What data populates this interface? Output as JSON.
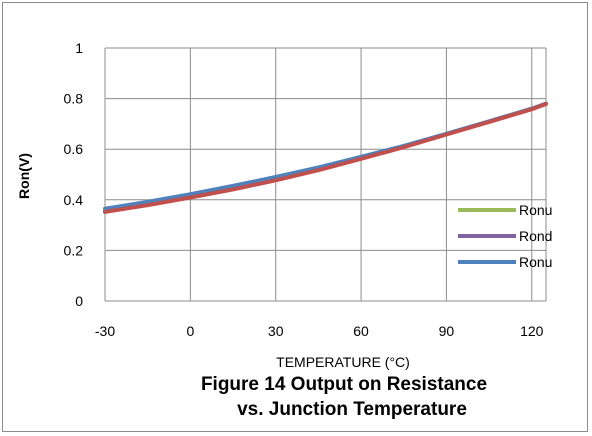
{
  "chart_data": {
    "type": "line",
    "xlabel": "TEMPERATURE (°C)",
    "ylabel": "Ron(V)",
    "title_lines": [
      "Figure 14  Output on Resistance",
      "vs. Junction Temperature"
    ],
    "xlim": [
      -30,
      125
    ],
    "ylim": [
      0,
      1
    ],
    "x_ticks": [
      -30,
      0,
      30,
      60,
      90,
      120
    ],
    "y_ticks": [
      0,
      0.2,
      0.4,
      0.6,
      0.8,
      1
    ],
    "y_tick_labels": [
      "0",
      "0.2",
      "0.4",
      "0.6",
      "0.8",
      "1"
    ],
    "grid": true,
    "legend_position": "right",
    "series": [
      {
        "name": "Ronu",
        "color": "#9BBB59",
        "x": [
          -30,
          -15,
          0,
          15,
          30,
          45,
          60,
          75,
          90,
          105,
          120,
          125
        ],
        "y": [
          0.355,
          0.382,
          0.412,
          0.445,
          0.48,
          0.52,
          0.565,
          0.61,
          0.66,
          0.71,
          0.76,
          0.78
        ]
      },
      {
        "name": "Rond",
        "color": "#8064A2",
        "x": [
          -30,
          -15,
          0,
          15,
          30,
          45,
          60,
          75,
          90,
          105,
          120,
          125
        ],
        "y": [
          0.355,
          0.382,
          0.412,
          0.445,
          0.48,
          0.52,
          0.565,
          0.61,
          0.66,
          0.71,
          0.76,
          0.78
        ]
      },
      {
        "name": "Ronu",
        "color": "#4F81BD",
        "x": [
          -30,
          -15,
          0,
          15,
          30,
          45,
          60,
          75,
          90,
          105,
          120,
          125
        ],
        "y": [
          0.365,
          0.392,
          0.422,
          0.455,
          0.49,
          0.528,
          0.57,
          0.613,
          0.661,
          0.71,
          0.76,
          0.78
        ]
      },
      {
        "name": "",
        "color": "#C0504D",
        "x": [
          -30,
          -15,
          0,
          15,
          30,
          45,
          60,
          75,
          90,
          105,
          120,
          125
        ],
        "y": [
          0.352,
          0.379,
          0.409,
          0.441,
          0.477,
          0.517,
          0.562,
          0.608,
          0.658,
          0.708,
          0.758,
          0.779
        ]
      }
    ]
  }
}
